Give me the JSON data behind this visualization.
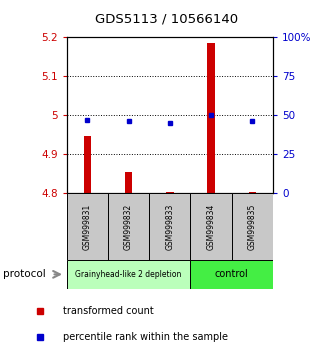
{
  "title": "GDS5113 / 10566140",
  "samples": [
    "GSM999831",
    "GSM999832",
    "GSM999833",
    "GSM999834",
    "GSM999835"
  ],
  "red_values": [
    4.945,
    4.855,
    4.803,
    5.185,
    4.803
  ],
  "red_base": 4.8,
  "blue_values": [
    47,
    46,
    45,
    50,
    46
  ],
  "ylim_left": [
    4.8,
    5.2
  ],
  "ylim_right": [
    0,
    100
  ],
  "yticks_left": [
    4.8,
    4.9,
    5.0,
    5.1,
    5.2
  ],
  "yticks_right": [
    0,
    25,
    50,
    75,
    100
  ],
  "ytick_labels_left": [
    "4.8",
    "4.9",
    "5",
    "5.1",
    "5.2"
  ],
  "ytick_labels_right": [
    "0",
    "25",
    "50",
    "75",
    "100%"
  ],
  "left_color": "#cc0000",
  "right_color": "#0000cc",
  "bar_color": "#cc0000",
  "dot_color": "#0000cc",
  "group1_label": "Grainyhead-like 2 depletion",
  "group2_label": "control",
  "group1_samples": [
    0,
    1,
    2
  ],
  "group2_samples": [
    3,
    4
  ],
  "group1_bg": "#bbffbb",
  "group2_bg": "#44ee44",
  "protocol_label": "protocol",
  "legend_red_label": "transformed count",
  "legend_blue_label": "percentile rank within the sample",
  "bar_width": 0.18
}
